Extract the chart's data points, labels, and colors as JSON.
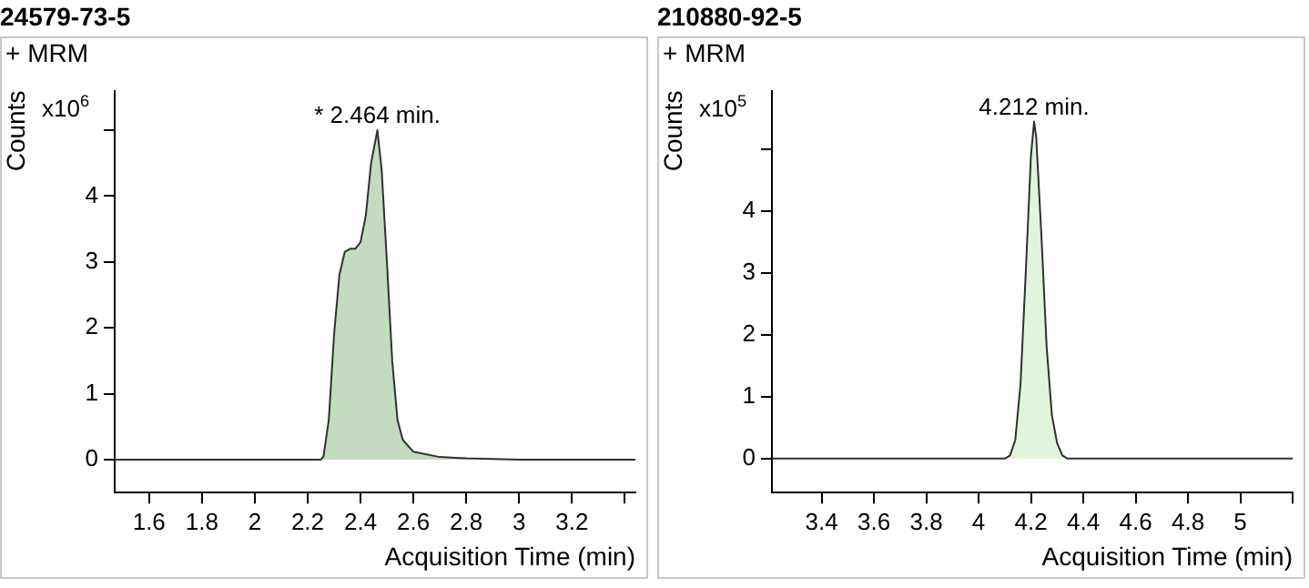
{
  "chart_data": [
    {
      "type": "area",
      "title": "24579-73-5",
      "subtitle": "+ MRM",
      "xlabel": "Acquisition Time (min)",
      "ylabel": "Counts",
      "annotations": [
        "x10$^{6}$",
        {
          "text": "* 2.464 min.",
          "x": 2.464,
          "y": 5.0
        }
      ],
      "series": [
        {
          "color": "#c3dcc0",
          "x": [
            1.47,
            2.0,
            2.25,
            2.26,
            2.28,
            2.3,
            2.32,
            2.34,
            2.36,
            2.38,
            2.4,
            2.42,
            2.44,
            2.464,
            2.48,
            2.5,
            2.52,
            2.54,
            2.56,
            2.6,
            2.7,
            2.8,
            3.0,
            3.44
          ],
          "values": [
            0,
            0,
            0,
            0.05,
            0.6,
            1.9,
            2.8,
            3.15,
            3.2,
            3.2,
            3.3,
            3.7,
            4.5,
            5.0,
            4.4,
            3.0,
            1.5,
            0.6,
            0.3,
            0.12,
            0.04,
            0.02,
            0,
            0
          ]
        }
      ],
      "xlim": [
        1.47,
        3.44
      ],
      "xticks": [
        1.6,
        1.8,
        2,
        2.2,
        2.4,
        2.6,
        2.8,
        3,
        3.2,
        {
          "value": 3.4,
          "label": null
        }
      ],
      "ylim": [
        -0.5,
        5.6
      ],
      "yticks": [
        0,
        1,
        2,
        3,
        4,
        {
          "value": 5,
          "label": null
        }
      ],
      "grid": false,
      "legend": false
    },
    {
      "type": "area",
      "title": "210880-92-5",
      "subtitle": "+ MRM",
      "xlabel": "Acquisition Time (min)",
      "ylabel": "Counts",
      "annotations": [
        "x10$^{5}$",
        {
          "text": "4.212 min.",
          "x": 4.212,
          "y": 5.45
        }
      ],
      "series": [
        {
          "color": "#e0f5dc",
          "x": [
            3.21,
            4.0,
            4.1,
            4.12,
            4.14,
            4.16,
            4.18,
            4.2,
            4.212,
            4.22,
            4.24,
            4.26,
            4.28,
            4.3,
            4.32,
            4.34,
            5.2
          ],
          "values": [
            0,
            0,
            0,
            0.05,
            0.3,
            1.2,
            3.0,
            4.9,
            5.45,
            5.2,
            3.6,
            1.8,
            0.7,
            0.25,
            0.05,
            0,
            0
          ]
        }
      ],
      "xlim": [
        3.21,
        5.2
      ],
      "xticks": [
        3.4,
        3.6,
        3.8,
        4,
        4.2,
        4.4,
        4.6,
        4.8,
        5,
        {
          "value": 5.2,
          "label": null
        }
      ],
      "ylim": [
        -0.55,
        5.95
      ],
      "yticks": [
        0,
        1,
        2,
        3,
        4,
        {
          "value": 5,
          "label": null
        }
      ],
      "grid": false,
      "legend": false
    }
  ]
}
